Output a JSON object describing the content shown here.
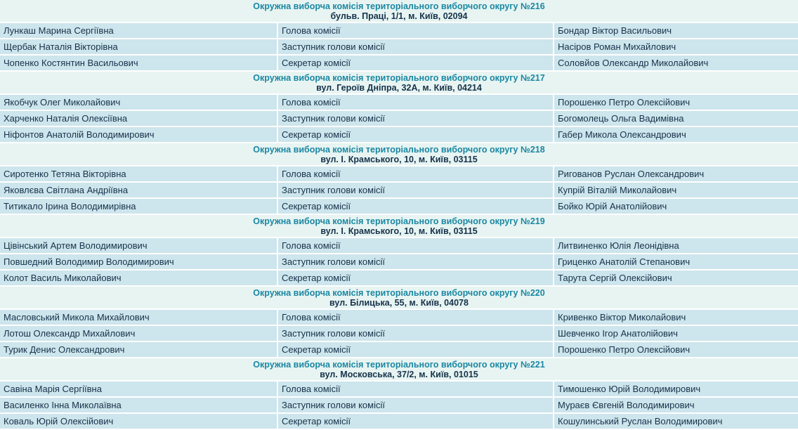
{
  "theme": {
    "page_background": "#e7f4f2",
    "row_background": "#cde5ec",
    "title_color": "#1a87a2",
    "text_color": "#16324a",
    "separator_color": "#ffffff"
  },
  "commissions": [
    {
      "title": "Окружна виборча комісія територіального виборчого округу №216",
      "address": "бульв. Праці, 1/1, м. Київ, 02094",
      "members": [
        {
          "name": "Лункаш Марина Сергіївна",
          "position": "Голова комісії",
          "nominator": "Бондар Віктор Васильович"
        },
        {
          "name": "Щербак Наталія Вікторівна",
          "position": "Заступник голови комісії",
          "nominator": "Насіров Роман Михайлович"
        },
        {
          "name": "Чопенко Костянтин Васильович",
          "position": "Секретар комісії",
          "nominator": "Соловйов Олександр Миколайович"
        }
      ]
    },
    {
      "title": "Окружна виборча комісія територіального виборчого округу №217",
      "address": "вул. Героїв Дніпра, 32А, м. Київ, 04214",
      "members": [
        {
          "name": "Якобчук Олег Миколайович",
          "position": "Голова комісії",
          "nominator": "Порошенко Петро Олексійович"
        },
        {
          "name": "Харченко Наталія Олексіївна",
          "position": "Заступник голови комісії",
          "nominator": "Богомолець Ольга Вадимівна"
        },
        {
          "name": "Ніфонтов Анатолій Володимирович",
          "position": "Секретар комісії",
          "nominator": "Габер Микола Олександрович"
        }
      ]
    },
    {
      "title": "Окружна виборча комісія територіального виборчого округу №218",
      "address": "вул. І. Крамського, 10, м. Київ, 03115",
      "members": [
        {
          "name": "Сиротенко Тетяна Вікторівна",
          "position": "Голова комісії",
          "nominator": "Ригованов Руслан Олександрович"
        },
        {
          "name": "Яковлєва Світлана Андріївна",
          "position": "Заступник голови комісії",
          "nominator": "Купрій Віталій Миколайович"
        },
        {
          "name": "Титикало Ірина Володимирівна",
          "position": "Секретар комісії",
          "nominator": "Бойко Юрій Анатолійович"
        }
      ]
    },
    {
      "title": "Окружна виборча комісія територіального виборчого округу №219",
      "address": "вул. І. Крамського, 10, м. Київ, 03115",
      "members": [
        {
          "name": "Цівінський Артем Володимирович",
          "position": "Голова комісії",
          "nominator": "Литвиненко Юлія Леонідівна"
        },
        {
          "name": "Повшедний Володимир Володимирович",
          "position": "Заступник голови комісії",
          "nominator": "Гриценко Анатолій Степанович"
        },
        {
          "name": "Колот Василь Миколайович",
          "position": "Секретар комісії",
          "nominator": "Тарута Сергій Олексійович"
        }
      ]
    },
    {
      "title": "Окружна виборча комісія територіального виборчого округу №220",
      "address": "вул. Білицька, 55, м. Київ, 04078",
      "members": [
        {
          "name": "Масловський Микола Михайлович",
          "position": "Голова комісії",
          "nominator": "Кривенко Віктор Миколайович"
        },
        {
          "name": "Лотош Олександр Михайлович",
          "position": "Заступник голови комісії",
          "nominator": "Шевченко Ігор Анатолійович"
        },
        {
          "name": "Турик Денис Олександрович",
          "position": "Секретар комісії",
          "nominator": "Порошенко Петро Олексійович"
        }
      ]
    },
    {
      "title": "Окружна виборча комісія територіального виборчого округу №221",
      "address": "вул. Московська, 37/2, м. Київ, 01015",
      "members": [
        {
          "name": "Савіна Марія Сергіївна",
          "position": "Голова комісії",
          "nominator": "Тимошенко Юрій Володимирович"
        },
        {
          "name": "Василенко Інна Миколаївна",
          "position": "Заступник голови комісії",
          "nominator": "Мураєв Євгеній Володимирович"
        },
        {
          "name": "Коваль Юрій Олексійович",
          "position": "Секретар комісії",
          "nominator": "Кошулинський Руслан Володимирович"
        }
      ]
    }
  ]
}
